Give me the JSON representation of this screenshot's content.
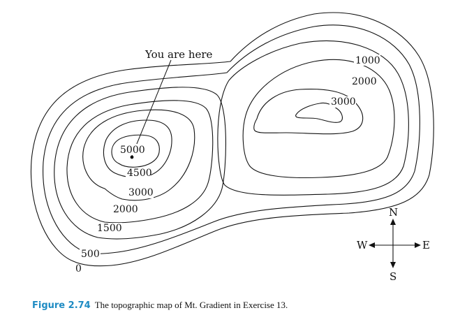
{
  "figure": {
    "pointer_label": "You are here",
    "contours": {
      "outer_zero": "0",
      "c500": "500",
      "c1500": "1500",
      "c2000_left": "2000",
      "c3000_left": "3000",
      "c4500": "4500",
      "c5000": "5000",
      "c1000": "1000",
      "c2000_right": "2000",
      "c3000_right": "3000"
    },
    "compass": {
      "north": "N",
      "south": "S",
      "east": "E",
      "west": "W"
    },
    "caption": {
      "number": "Figure 2.74",
      "text": "The topographic map of Mt. Gradient in Exercise 13."
    }
  }
}
